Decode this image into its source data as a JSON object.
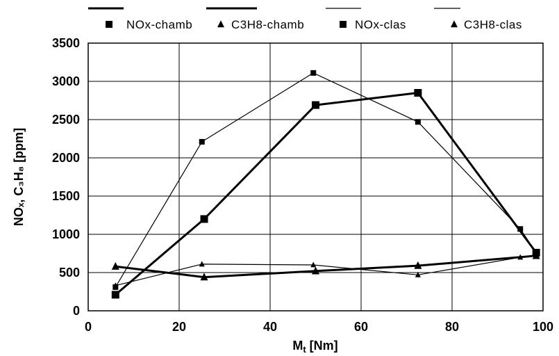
{
  "chart_data": {
    "type": "line",
    "xlabel_main": "M",
    "xlabel_sub": "t",
    "xlabel_unit": " [Nm]",
    "ylabel": "NOₓ, C₃H₈  [ppm]",
    "xlim": [
      0,
      100
    ],
    "ylim": [
      0,
      3500
    ],
    "xticks": [
      "0",
      "20",
      "40",
      "60",
      "80",
      "100"
    ],
    "yticks": [
      "0",
      "500",
      "1000",
      "1500",
      "2000",
      "2500",
      "3000",
      "3500"
    ],
    "grid": true,
    "legend_position": "top",
    "series": [
      {
        "name": "NOx-chamb",
        "marker": "square",
        "line": "thick",
        "x": [
          6,
          25.5,
          50,
          72.5,
          98.5
        ],
        "y": [
          210,
          1200,
          2690,
          2850,
          760
        ]
      },
      {
        "name": "C3H8-chamb",
        "marker": "triangle",
        "line": "thick",
        "x": [
          6,
          25.5,
          50,
          72.5,
          98.5
        ],
        "y": [
          580,
          440,
          520,
          590,
          720
        ]
      },
      {
        "name": "NOx-clas",
        "marker": "square",
        "line": "thin",
        "x": [
          6,
          25,
          49.5,
          72.5,
          95,
          98.5
        ],
        "y": [
          310,
          2210,
          3110,
          2470,
          1070,
          760
        ]
      },
      {
        "name": "C3H8-clas",
        "marker": "triangle",
        "line": "thin",
        "x": [
          6,
          25,
          49.5,
          72.5,
          95,
          98.5
        ],
        "y": [
          330,
          610,
          600,
          470,
          700,
          720
        ]
      }
    ]
  }
}
